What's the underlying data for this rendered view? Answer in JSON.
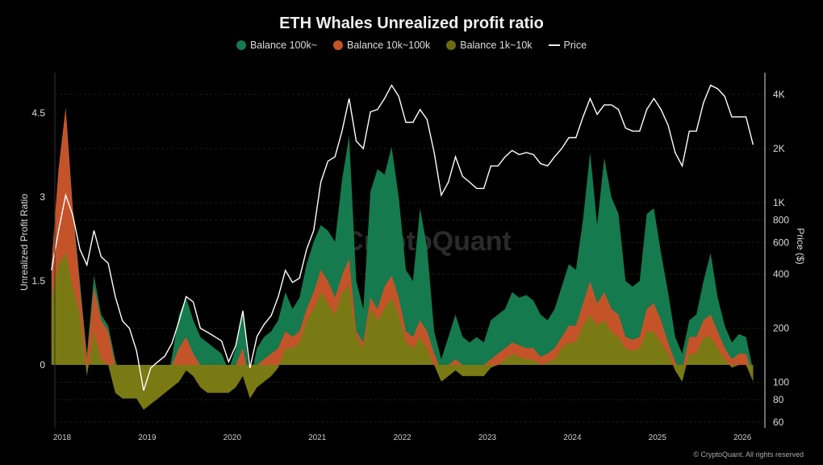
{
  "chart_data": {
    "type": "area",
    "title": "ETH Whales Unrealized profit ratio",
    "ylabel": "Unrealized Profit Ratio",
    "y2label": "Price ($)",
    "ylim": [
      -1.13,
      5.2
    ],
    "y2lim": [
      60,
      5200
    ],
    "y2scale": "log",
    "yticks": [
      "4.5",
      "3",
      "1.5",
      "0"
    ],
    "yticks_values": [
      4.5,
      3,
      1.5,
      0
    ],
    "y2ticks": [
      "4K",
      "2K",
      "1K",
      "800",
      "600",
      "400",
      "200",
      "100",
      "80",
      "60"
    ],
    "y2ticks_values": [
      4000,
      2000,
      1000,
      800,
      600,
      400,
      200,
      100,
      80,
      60
    ],
    "xticks": [
      "2018",
      "2019",
      "2020",
      "2021",
      "2022",
      "2023",
      "2024",
      "2025",
      "2026"
    ],
    "legend_placement": "top-center",
    "grid": true,
    "x": [
      "2017-11",
      "2017-12",
      "2018-01",
      "2018-02",
      "2018-03",
      "2018-04",
      "2018-05",
      "2018-06",
      "2018-07",
      "2018-08",
      "2018-09",
      "2018-10",
      "2018-11",
      "2018-12",
      "2019-01",
      "2019-02",
      "2019-03",
      "2019-04",
      "2019-05",
      "2019-06",
      "2019-07",
      "2019-08",
      "2019-09",
      "2019-10",
      "2019-11",
      "2019-12",
      "2020-01",
      "2020-02",
      "2020-03",
      "2020-04",
      "2020-05",
      "2020-06",
      "2020-07",
      "2020-08",
      "2020-09",
      "2020-10",
      "2020-11",
      "2020-12",
      "2021-01",
      "2021-02",
      "2021-03",
      "2021-04",
      "2021-05",
      "2021-06",
      "2021-07",
      "2021-08",
      "2021-09",
      "2021-10",
      "2021-11",
      "2021-12",
      "2022-01",
      "2022-02",
      "2022-03",
      "2022-04",
      "2022-05",
      "2022-06",
      "2022-07",
      "2022-08",
      "2022-09",
      "2022-10",
      "2022-11",
      "2022-12",
      "2023-01",
      "2023-02",
      "2023-03",
      "2023-04",
      "2023-05",
      "2023-06",
      "2023-07",
      "2023-08",
      "2023-09",
      "2023-10",
      "2023-11",
      "2023-12",
      "2024-01",
      "2024-02",
      "2024-03",
      "2024-04",
      "2024-05",
      "2024-06",
      "2024-07",
      "2024-08",
      "2024-09",
      "2024-10",
      "2024-11",
      "2024-12",
      "2025-01",
      "2025-02",
      "2025-03",
      "2025-04",
      "2025-05",
      "2025-06",
      "2025-07",
      "2025-08",
      "2025-09",
      "2025-10",
      "2025-11",
      "2025-12",
      "2026-01",
      "2026-02"
    ],
    "series": [
      {
        "name": "Balance 100k~",
        "color": "#157a4d",
        "axis": "left",
        "values": [
          1.8,
          3.5,
          4.6,
          2.8,
          1.5,
          0.2,
          1.6,
          0.9,
          0.7,
          0.1,
          -0.3,
          -0.3,
          -0.6,
          -0.8,
          -0.7,
          -0.6,
          -0.5,
          0.15,
          0.9,
          1.2,
          0.8,
          0.5,
          0.4,
          0.3,
          0.2,
          -0.1,
          0.3,
          1.0,
          -0.3,
          0.3,
          0.5,
          0.6,
          0.8,
          1.3,
          1.0,
          1.2,
          1.8,
          2.2,
          2.5,
          2.4,
          2.2,
          3.3,
          4.1,
          1.5,
          1.0,
          3.1,
          3.5,
          3.4,
          3.9,
          3.0,
          1.7,
          1.5,
          2.8,
          2.1,
          0.6,
          0.1,
          0.5,
          0.9,
          0.5,
          0.4,
          0.5,
          0.4,
          0.8,
          0.9,
          1.0,
          1.3,
          1.2,
          1.25,
          1.15,
          0.9,
          0.8,
          1.0,
          1.4,
          1.8,
          1.7,
          2.6,
          3.8,
          2.5,
          3.7,
          3.0,
          2.7,
          1.5,
          1.4,
          1.5,
          2.7,
          2.8,
          2.0,
          1.3,
          0.5,
          0.2,
          0.8,
          0.9,
          1.5,
          2.0,
          1.2,
          0.7,
          0.4,
          0.55,
          0.5,
          -0.1
        ]
      },
      {
        "name": "Balance 10k~100k",
        "color": "#c4532a",
        "axis": "left",
        "values": [
          1.8,
          3.5,
          4.6,
          2.8,
          1.4,
          0.1,
          1.4,
          0.8,
          0.6,
          0.0,
          -0.4,
          -0.4,
          -0.6,
          -0.8,
          -0.7,
          -0.6,
          -0.5,
          0.0,
          0.3,
          0.5,
          0.2,
          0.0,
          -0.1,
          -0.1,
          -0.1,
          -0.3,
          0.0,
          0.3,
          -0.4,
          0.0,
          0.1,
          0.2,
          0.3,
          0.6,
          0.5,
          0.6,
          1.0,
          1.3,
          1.7,
          1.5,
          1.2,
          1.6,
          1.9,
          0.6,
          0.4,
          1.2,
          1.0,
          1.4,
          1.6,
          1.2,
          0.6,
          0.5,
          0.8,
          0.6,
          0.2,
          -0.1,
          0.0,
          0.1,
          0.0,
          -0.1,
          0.0,
          0.0,
          0.1,
          0.2,
          0.3,
          0.4,
          0.35,
          0.3,
          0.3,
          0.15,
          0.2,
          0.3,
          0.5,
          0.7,
          0.7,
          1.1,
          1.5,
          1.1,
          1.3,
          1.0,
          0.9,
          0.5,
          0.45,
          0.5,
          1.0,
          1.1,
          0.8,
          0.4,
          0.05,
          -0.1,
          0.5,
          0.5,
          0.8,
          0.9,
          0.6,
          0.3,
          0.1,
          0.2,
          0.2,
          -0.2
        ]
      },
      {
        "name": "Balance 1k~10k",
        "color": "#7a7a14",
        "axis": "left",
        "values": [
          1.2,
          1.8,
          2.0,
          1.4,
          0.9,
          -0.2,
          0.6,
          0.1,
          0.0,
          -0.5,
          -0.6,
          -0.6,
          -0.6,
          -0.8,
          -0.7,
          -0.6,
          -0.5,
          -0.4,
          -0.3,
          -0.1,
          -0.2,
          -0.4,
          -0.5,
          -0.5,
          -0.5,
          -0.5,
          -0.4,
          -0.2,
          -0.6,
          -0.4,
          -0.3,
          -0.2,
          -0.05,
          0.3,
          0.3,
          0.4,
          0.8,
          1.0,
          1.3,
          1.1,
          0.9,
          1.3,
          1.4,
          0.5,
          0.3,
          1.0,
          0.8,
          1.0,
          1.2,
          0.9,
          0.4,
          0.3,
          0.5,
          0.3,
          0.0,
          -0.3,
          -0.2,
          -0.1,
          -0.2,
          -0.2,
          -0.2,
          -0.2,
          -0.05,
          0.0,
          0.1,
          0.2,
          0.15,
          0.1,
          0.1,
          0.0,
          0.05,
          0.1,
          0.3,
          0.4,
          0.4,
          0.7,
          0.9,
          0.7,
          0.8,
          0.6,
          0.5,
          0.3,
          0.25,
          0.3,
          0.6,
          0.6,
          0.4,
          0.2,
          -0.1,
          -0.3,
          0.2,
          0.2,
          0.5,
          0.5,
          0.3,
          0.1,
          -0.05,
          0.0,
          0.0,
          -0.3
        ]
      },
      {
        "name": "Price",
        "color": "#ffffff",
        "axis": "right",
        "values": [
          420,
          700,
          1100,
          850,
          550,
          450,
          700,
          500,
          460,
          300,
          220,
          200,
          150,
          90,
          120,
          130,
          140,
          165,
          220,
          300,
          280,
          200,
          190,
          180,
          170,
          130,
          160,
          250,
          120,
          180,
          210,
          235,
          300,
          420,
          360,
          380,
          550,
          700,
          1300,
          1700,
          1800,
          2500,
          3800,
          2200,
          2000,
          3200,
          3300,
          3800,
          4500,
          3900,
          2800,
          2800,
          3300,
          2900,
          1900,
          1100,
          1300,
          1800,
          1400,
          1300,
          1200,
          1200,
          1600,
          1600,
          1800,
          1950,
          1850,
          1900,
          1850,
          1650,
          1600,
          1800,
          2000,
          2300,
          2300,
          3000,
          3800,
          3100,
          3500,
          3500,
          3300,
          2600,
          2500,
          2500,
          3300,
          3800,
          3300,
          2700,
          1900,
          1600,
          2500,
          2500,
          3600,
          4500,
          4300,
          3900,
          3000,
          3000,
          3000,
          2100
        ]
      }
    ]
  },
  "watermark": "CryptoQuant",
  "footer": "© CryptoQuant. All rights reserved"
}
